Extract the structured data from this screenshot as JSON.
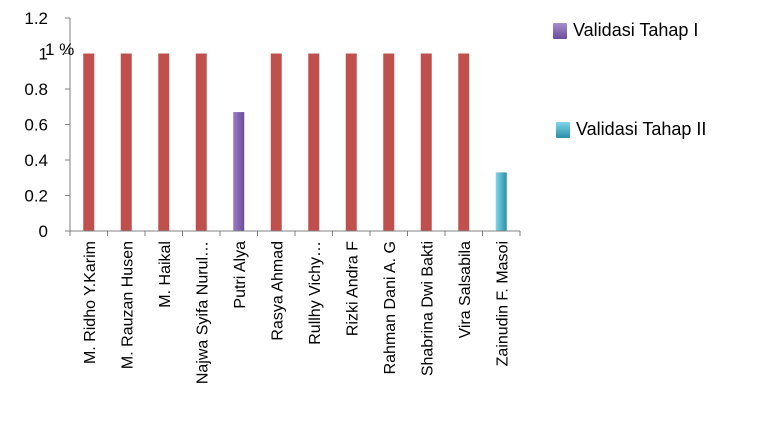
{
  "chart_data": {
    "type": "bar",
    "categories": [
      "M. Ridho Y.Karim",
      "M. Rauzan Husen",
      "M. Haikal",
      "Najwa Syifa Nurul…",
      "Putri Alya",
      "Rasya Ahmad",
      "Rullhy Vichy…",
      "Rizki Andra F",
      "Rahman Dani A. G",
      "Shabrina Dwi Bakti",
      "Vira Salsabila",
      "Zainudin F. Masoi"
    ],
    "series": [
      {
        "name": "",
        "color": "#c0504d",
        "values": [
          1,
          1,
          1,
          1,
          null,
          1,
          1,
          1,
          1,
          1,
          1,
          null
        ]
      },
      {
        "name": "Validasi Tahap I",
        "color": "#7f5fa8",
        "values": [
          null,
          null,
          null,
          null,
          0.67,
          null,
          null,
          null,
          null,
          null,
          null,
          null
        ]
      },
      {
        "name": "Validasi Tahap II",
        "color": "#3cb3cc",
        "values": [
          null,
          null,
          null,
          null,
          null,
          null,
          null,
          null,
          null,
          null,
          null,
          0.33
        ]
      }
    ],
    "yticks": [
      "0",
      "0.2",
      "0.4",
      "0.6",
      "0.8",
      "1",
      "1.2"
    ],
    "ylim": [
      0,
      1.2
    ],
    "annotation": "1 %",
    "legend_position": "right",
    "grid": false
  }
}
